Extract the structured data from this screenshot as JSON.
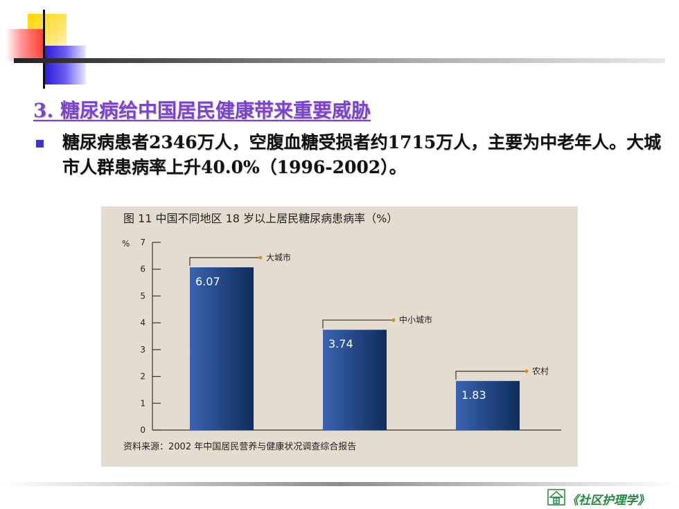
{
  "slide": {
    "title": "3. 糖尿病给中国居民健康带来重要威胁",
    "bullet": "糖尿病患者2346万人，空腹血糖受损者约1715万人，主要为中老年人。大城市人群患病率上升40.0%（1996-2002）。",
    "footer": "《社区护理学》"
  },
  "colors": {
    "title": "#7a45c8",
    "bar_dark": "#0e2d5a",
    "bar_light": "#3a63b0",
    "panel": "#e5dcd0",
    "footer": "#1c8a3a"
  },
  "chart_data": {
    "type": "bar",
    "title": "图 11    中国不同地区 18 岁以上居民糖尿病患病率（%）",
    "ylabel": "%",
    "ylim": [
      0,
      7
    ],
    "yticks": [
      "0",
      "1",
      "2",
      "3",
      "4",
      "5",
      "6",
      "7"
    ],
    "categories": [
      "大城市",
      "中小城市",
      "农村"
    ],
    "values": [
      6.07,
      3.74,
      1.83
    ],
    "value_labels": [
      "6.07",
      "3.74",
      "1.83"
    ],
    "source": "资料来源：2002 年中国居民营养与健康状况调查综合报告"
  }
}
